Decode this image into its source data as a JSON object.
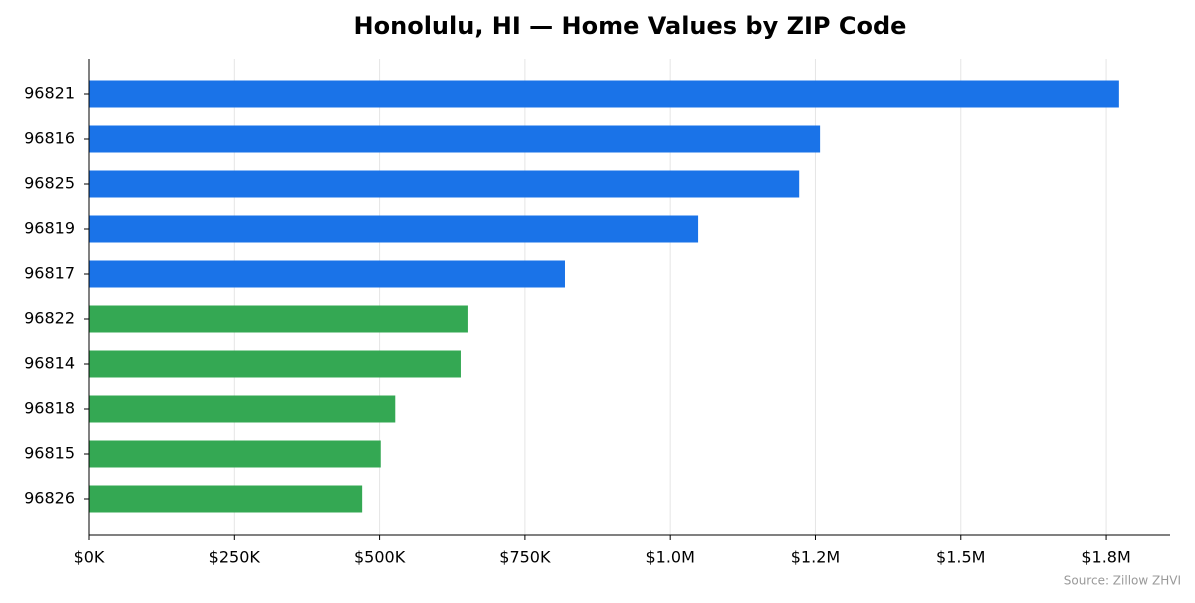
{
  "chart_data": {
    "type": "hbar",
    "title": "Honolulu, HI — Home Values by ZIP Code",
    "categories": [
      "96821",
      "96816",
      "96825",
      "96819",
      "96817",
      "96822",
      "96814",
      "96818",
      "96815",
      "96826"
    ],
    "values": [
      1772000,
      1258000,
      1222000,
      1048000,
      819000,
      652000,
      640000,
      527000,
      502000,
      470000
    ],
    "colors": [
      "#1a73e8",
      "#1a73e8",
      "#1a73e8",
      "#1a73e8",
      "#1a73e8",
      "#34a853",
      "#34a853",
      "#34a853",
      "#34a853",
      "#34a853"
    ],
    "xlim": [
      0,
      1860000
    ],
    "xticks": [
      {
        "value": 0,
        "label": "$0K"
      },
      {
        "value": 250000,
        "label": "$250K"
      },
      {
        "value": 500000,
        "label": "$500K"
      },
      {
        "value": 750000,
        "label": "$750K"
      },
      {
        "value": 1000000,
        "label": "$1.0M"
      },
      {
        "value": 1250000,
        "label": "$1.2M"
      },
      {
        "value": 1500000,
        "label": "$1.5M"
      },
      {
        "value": 1750000,
        "label": "$1.8M"
      }
    ],
    "grid": true,
    "source": "Source: Zillow ZHVI"
  }
}
